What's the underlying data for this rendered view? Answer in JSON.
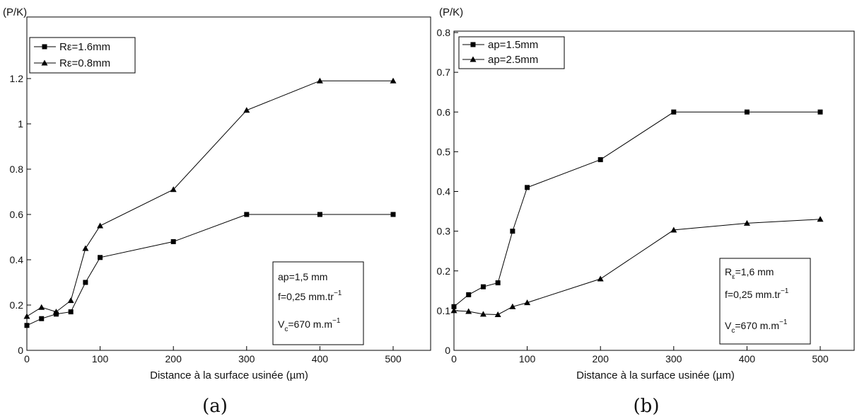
{
  "chart_data": [
    {
      "type": "line",
      "ylabel": "(P/K)",
      "xlabel": "Distance à  la surface usinée (µm)",
      "caption": "(a)",
      "xlim": [
        0,
        550
      ],
      "ylim": [
        0,
        1.4
      ],
      "xticks": [
        "0",
        "100",
        "200",
        "300",
        "400",
        "500"
      ],
      "yticks": [
        "0",
        "0.2",
        "0.4",
        "0.6",
        "0.8",
        "1",
        "1.2"
      ],
      "legend_position": "top-left",
      "series": [
        {
          "name": "Rε=1.6mm",
          "marker": "square",
          "x": [
            0,
            20,
            40,
            60,
            80,
            100,
            200,
            300,
            400,
            500
          ],
          "y": [
            0.11,
            0.14,
            0.16,
            0.17,
            0.3,
            0.41,
            0.48,
            0.6,
            0.6,
            0.6
          ]
        },
        {
          "name": "Rε=0.8mm",
          "marker": "triangle",
          "x": [
            0,
            20,
            40,
            60,
            80,
            100,
            200,
            300,
            400,
            500
          ],
          "y": [
            0.15,
            0.19,
            0.17,
            0.22,
            0.45,
            0.55,
            0.71,
            1.06,
            1.19,
            1.19
          ]
        }
      ],
      "annotation": {
        "line1": "ap=1,5 mm",
        "line2_main": "f=0,25 mm.tr",
        "line2_sup": "−1",
        "line3_main": "V",
        "line3_sub": "c",
        "line3_rest": "=670 m.m",
        "line3_sup": "−1"
      }
    },
    {
      "type": "line",
      "ylabel": "(P/K)",
      "xlabel": "Distance à  la surface usinée (µm)",
      "caption": "(b)",
      "xlim": [
        0,
        550
      ],
      "ylim": [
        0,
        0.8
      ],
      "xticks": [
        "0",
        "100",
        "200",
        "300",
        "400",
        "500"
      ],
      "yticks": [
        "0",
        "0.1",
        "0.2",
        "0.3",
        "0.4",
        "0.5",
        "0.6",
        "0.7",
        "0.8"
      ],
      "legend_position": "top-left",
      "series": [
        {
          "name": "ap=1.5mm",
          "marker": "square",
          "x": [
            0,
            20,
            40,
            60,
            80,
            100,
            200,
            300,
            400,
            500
          ],
          "y": [
            0.11,
            0.14,
            0.16,
            0.17,
            0.3,
            0.41,
            0.48,
            0.6,
            0.6,
            0.6
          ]
        },
        {
          "name": "ap=2.5mm",
          "marker": "triangle",
          "x": [
            0,
            20,
            40,
            60,
            80,
            100,
            200,
            300,
            400,
            500
          ],
          "y": [
            0.1,
            0.098,
            0.091,
            0.09,
            0.11,
            0.12,
            0.18,
            0.303,
            0.32,
            0.33
          ]
        }
      ],
      "annotation": {
        "line1_main": "R",
        "line1_sub": "ε",
        "line1_rest": "=1,6 mm",
        "line2_main": "f=0,25 mm.tr",
        "line2_sup": "−1",
        "line3_main": "V",
        "line3_sub": "c",
        "line3_rest": "=670 m.m",
        "line3_sup": "−1"
      }
    }
  ]
}
